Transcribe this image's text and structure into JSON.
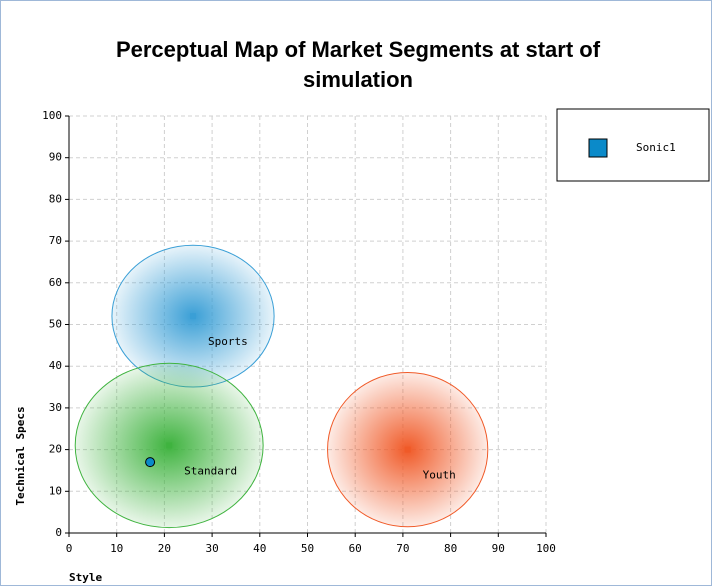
{
  "chart_data": {
    "type": "scatter",
    "title": "Perceptual Map of Market Segments at start of simulation",
    "xlabel": "Style",
    "ylabel": "Technical Specs",
    "xlim": [
      0,
      100
    ],
    "ylim": [
      0,
      100
    ],
    "xticks": [
      0,
      10,
      20,
      30,
      40,
      50,
      60,
      70,
      80,
      90,
      100
    ],
    "yticks": [
      0,
      10,
      20,
      30,
      40,
      50,
      60,
      70,
      80,
      90,
      100
    ],
    "grid": true,
    "legend": "upper right",
    "segments": [
      {
        "name": "Sports",
        "x": 26,
        "y": 52,
        "rx": 17,
        "ry": 17,
        "color": "#3a9fd6"
      },
      {
        "name": "Standard",
        "x": 21,
        "y": 21,
        "rx": 19.7,
        "ry": 19.7,
        "color": "#3fb33f"
      },
      {
        "name": "Youth",
        "x": 71,
        "y": 20,
        "rx": 16.8,
        "ry": 18.5,
        "color": "#f05a28"
      }
    ],
    "series": [
      {
        "name": "Sonic1",
        "color": "#0b8ac9",
        "x": [
          17
        ],
        "values": [
          17
        ]
      }
    ]
  }
}
